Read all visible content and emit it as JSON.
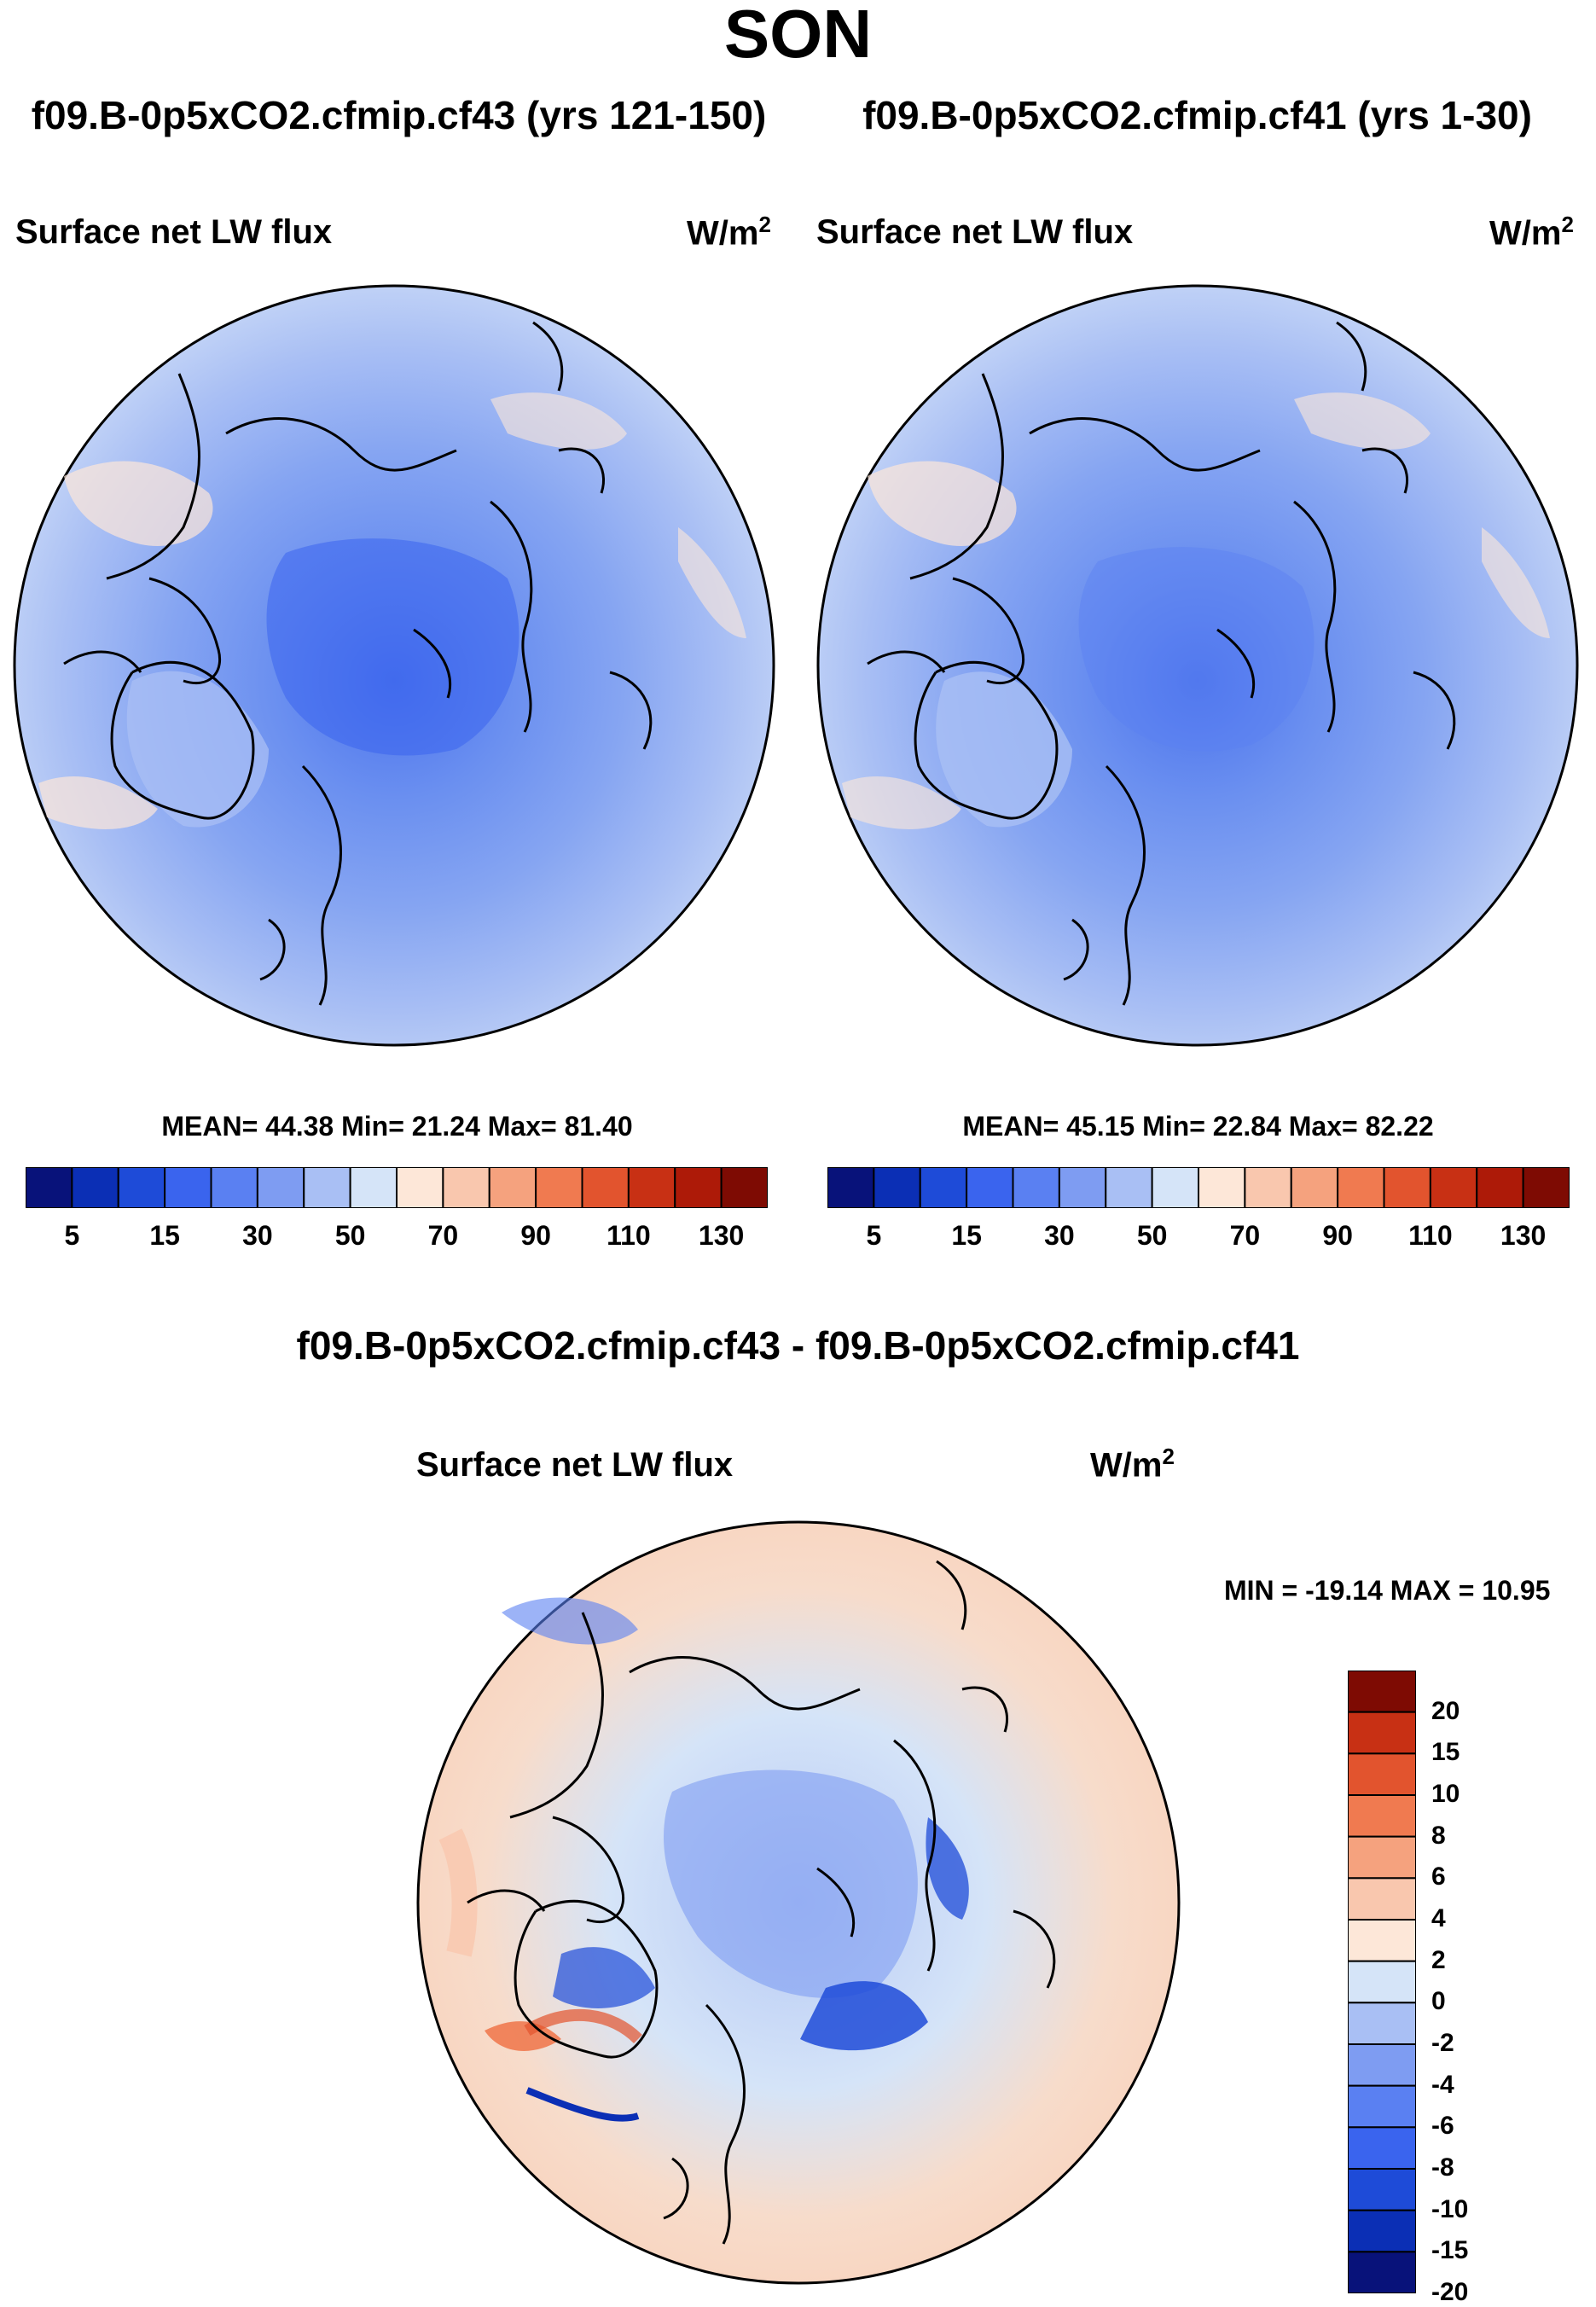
{
  "season": "SON",
  "top_left": {
    "title": "f09.B-0p5xCO2.cfmip.cf43 (yrs 121-150)",
    "variable": "Surface net LW flux",
    "units": "W/m",
    "units_sup": "2",
    "stats": "MEAN=  44.38  Min=  21.24  Max=  81.40"
  },
  "top_right": {
    "title": "f09.B-0p5xCO2.cfmip.cf41 (yrs 1-30)",
    "variable": "Surface net LW flux",
    "units": "W/m",
    "units_sup": "2",
    "stats": "MEAN=  45.15  Min=  22.84  Max=  82.22"
  },
  "bottom": {
    "title": "f09.B-0p5xCO2.cfmip.cf43 - f09.B-0p5xCO2.cfmip.cf41",
    "variable": "Surface net LW flux",
    "units": "W/m",
    "units_sup": "2",
    "stats": "MIN = -19.14 MAX =  10.95"
  },
  "colors": {
    "abs_scale": [
      "#08127a",
      "#0b2fb5",
      "#1e4bd8",
      "#3a64ee",
      "#5a80f2",
      "#7e9cf2",
      "#a9bff4",
      "#d5e4f8",
      "#fde7d8",
      "#f9c7ae",
      "#f5a27e",
      "#f07a50",
      "#e2542e",
      "#c83014",
      "#ad1a08",
      "#7e0b03"
    ],
    "diff_scale": [
      "#08127a",
      "#0b2fb5",
      "#1e4bd8",
      "#3a64ee",
      "#5a80f2",
      "#7e9cf2",
      "#a9bff4",
      "#d5e4f8",
      "#fde7d8",
      "#f9c7ae",
      "#f5a27e",
      "#f07a50",
      "#e2542e",
      "#c83014",
      "#7e0b03"
    ]
  },
  "chart_data": [
    {
      "type": "heatmap",
      "title": "f09.B-0p5xCO2.cfmip.cf43 (yrs 121-150)",
      "variable": "Surface net LW flux",
      "units": "W/m^2",
      "projection": "north polar stereographic",
      "colorbar_levels": [
        5,
        10,
        15,
        20,
        30,
        40,
        50,
        60,
        70,
        80,
        90,
        100,
        110,
        120,
        130
      ],
      "colorbar_tick_labels": [
        "5",
        "15",
        "30",
        "50",
        "70",
        "90",
        "110",
        "130"
      ],
      "mean": 44.38,
      "min": 21.24,
      "max": 81.4
    },
    {
      "type": "heatmap",
      "title": "f09.B-0p5xCO2.cfmip.cf41 (yrs 1-30)",
      "variable": "Surface net LW flux",
      "units": "W/m^2",
      "projection": "north polar stereographic",
      "colorbar_levels": [
        5,
        10,
        15,
        20,
        30,
        40,
        50,
        60,
        70,
        80,
        90,
        100,
        110,
        120,
        130
      ],
      "colorbar_tick_labels": [
        "5",
        "15",
        "30",
        "50",
        "70",
        "90",
        "110",
        "130"
      ],
      "mean": 45.15,
      "min": 22.84,
      "max": 82.22
    },
    {
      "type": "heatmap",
      "title": "f09.B-0p5xCO2.cfmip.cf43 - f09.B-0p5xCO2.cfmip.cf41",
      "variable": "Surface net LW flux",
      "units": "W/m^2",
      "projection": "north polar stereographic",
      "colorbar_levels": [
        20,
        15,
        10,
        8,
        6,
        4,
        2,
        0,
        -2,
        -4,
        -6,
        -8,
        -10,
        -15,
        -20
      ],
      "colorbar_tick_labels": [
        "20",
        "15",
        "10",
        "8",
        "6",
        "4",
        "2",
        "0",
        "-2",
        "-4",
        "-6",
        "-8",
        "-10",
        "-15",
        "-20"
      ],
      "min": -19.14,
      "max": 10.95
    }
  ]
}
